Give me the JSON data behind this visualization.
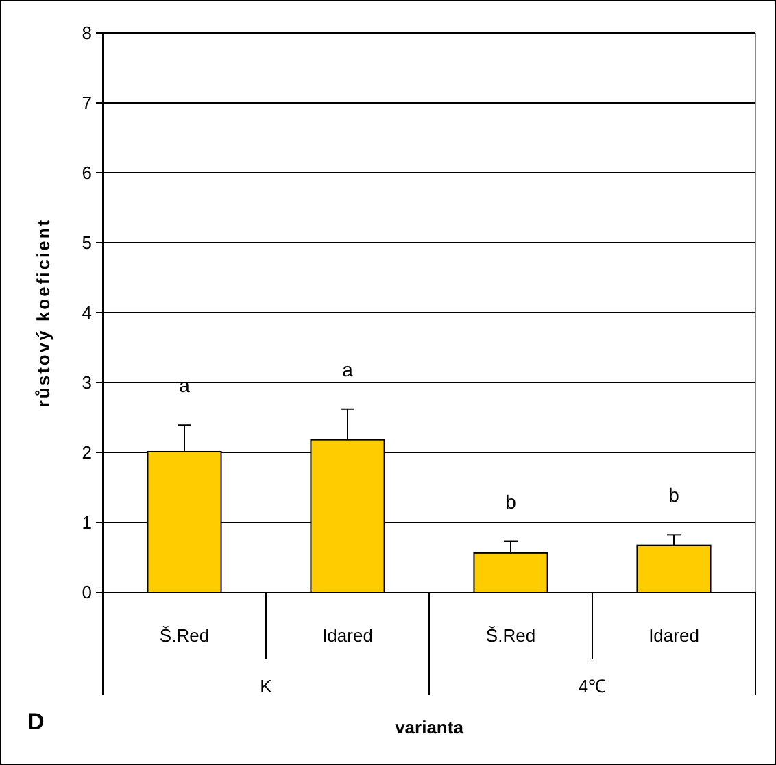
{
  "chart_data": {
    "type": "bar",
    "ylabel": "růstový koeficient",
    "xlabel": "varianta",
    "categories": [
      "Š.Red",
      "Idared",
      "Š.Red",
      "Idared"
    ],
    "values": [
      2.01,
      2.18,
      0.56,
      0.67
    ],
    "errors": [
      0.38,
      0.44,
      0.17,
      0.15
    ],
    "color": "#ffcc00",
    "ylim": [
      0,
      8
    ],
    "yticks": [
      0,
      1,
      2,
      3,
      4,
      5,
      6,
      7,
      8
    ],
    "grid": "y",
    "annotations": [
      "a",
      "a",
      "b",
      "b",
      "K",
      "4℃",
      "D"
    ]
  }
}
